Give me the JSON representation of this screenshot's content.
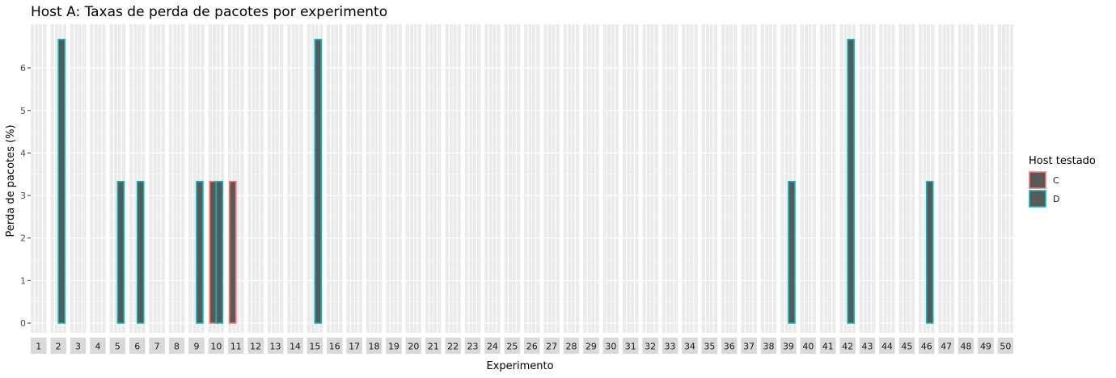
{
  "chart_data": {
    "type": "bar",
    "title": "Host A: Taxas de perda de pacotes por experimento",
    "xlabel": "Experimento",
    "ylabel": "Perda de pacotes (%)",
    "ylim": [
      0,
      6.9
    ],
    "yticks": [
      0,
      1,
      2,
      3,
      4,
      5,
      6
    ],
    "grid": true,
    "legend": {
      "title": "Host testado",
      "placement": "right"
    },
    "categories": [
      "1",
      "2",
      "3",
      "4",
      "5",
      "6",
      "7",
      "8",
      "9",
      "10",
      "11",
      "12",
      "13",
      "14",
      "15",
      "16",
      "17",
      "18",
      "19",
      "20",
      "21",
      "22",
      "23",
      "24",
      "25",
      "26",
      "27",
      "28",
      "29",
      "30",
      "31",
      "32",
      "33",
      "34",
      "35",
      "36",
      "37",
      "38",
      "39",
      "40",
      "41",
      "42",
      "43",
      "44",
      "45",
      "46",
      "47",
      "48",
      "49",
      "50"
    ],
    "series": [
      {
        "name": "C",
        "color": "#F8766D",
        "values": [
          0,
          0,
          0,
          0,
          0,
          0,
          0,
          0,
          0,
          3.33,
          3.33,
          0,
          0,
          0,
          0,
          0,
          0,
          0,
          0,
          0,
          0,
          0,
          0,
          0,
          0,
          0,
          0,
          0,
          0,
          0,
          0,
          0,
          0,
          0,
          0,
          0,
          0,
          0,
          0,
          0,
          0,
          0,
          0,
          0,
          0,
          0,
          0,
          0,
          0,
          0
        ]
      },
      {
        "name": "D",
        "color": "#00BFC4",
        "values": [
          0,
          6.67,
          0,
          0,
          3.33,
          3.33,
          0,
          0,
          3.33,
          3.33,
          0,
          0,
          0,
          0,
          6.67,
          0,
          0,
          0,
          0,
          0,
          0,
          0,
          0,
          0,
          0,
          0,
          0,
          0,
          0,
          0,
          0,
          0,
          0,
          0,
          0,
          0,
          0,
          0,
          3.33,
          0,
          0,
          6.67,
          0,
          0,
          0,
          3.33,
          0,
          0,
          0,
          0
        ]
      }
    ],
    "fill_color": "#595959"
  }
}
